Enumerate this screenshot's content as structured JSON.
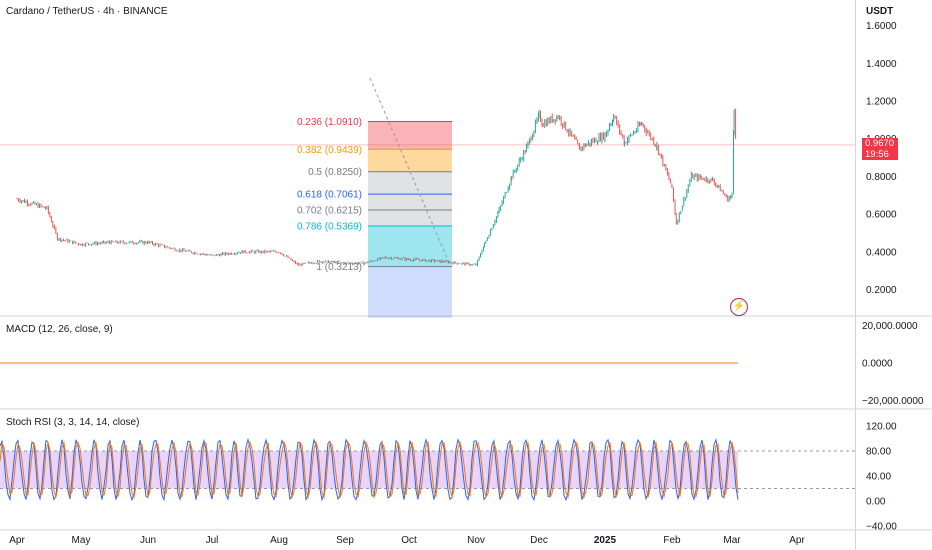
{
  "header": {
    "symbol_title": "Cardano / TetherUS · 4h · BINANCE",
    "currency": "USDT"
  },
  "current_price": {
    "value": "0.9670",
    "countdown": "19:56",
    "color": "#f23645"
  },
  "panes": {
    "macd_title": "MACD (12, 26, close, 9)",
    "stoch_title": "Stoch RSI (3, 3, 14, 14, close)"
  },
  "colors": {
    "up": "#26a69a",
    "down": "#ef5350",
    "macd_line": "#f57c00",
    "stoch_k": "#2962ff",
    "stoch_d": "#f57c00",
    "stoch_band": "#e1c4ff",
    "fib_236": "#f23645",
    "fib_382": "#ff9800",
    "fib_618": "#2962ff",
    "fib_786": "#00bcd4"
  },
  "icons": {
    "alert": "lightning-bolt-icon"
  },
  "chart_data": [
    {
      "type": "line",
      "title": "Cardano / TetherUS · 4h · BINANCE",
      "x_ticks": [
        "Apr",
        "May",
        "Jun",
        "Jul",
        "Aug",
        "Sep",
        "Oct",
        "Nov",
        "Dec",
        "2025",
        "Feb",
        "Mar",
        "Apr"
      ],
      "y_ticks": [
        "0.2000",
        "0.4000",
        "0.6000",
        "0.8000",
        "1.0000",
        "1.2000",
        "1.4000",
        "1.6000"
      ],
      "ylim": [
        0.1,
        1.67
      ],
      "series": [
        {
          "x": [
            "Apr 1",
            "Apr 15",
            "Apr 20",
            "May 1",
            "May 15",
            "Jun 1",
            "Jun 15",
            "Jul 1",
            "Jul 15",
            "Aug 1",
            "Aug 10",
            "Aug 20",
            "Sep 1",
            "Sep 10",
            "Sep 20",
            "Oct 1",
            "Oct 15",
            "Nov 1",
            "Nov 5",
            "Nov 12",
            "Nov 18",
            "Nov 25",
            "Dec 1",
            "Dec 3",
            "Dec 10",
            "Dec 20",
            "Jan 1",
            "Jan 5",
            "Jan 10",
            "Jan 18",
            "Jan 25",
            "Feb 1",
            "Feb 3",
            "Feb 10",
            "Feb 20",
            "Feb 27",
            "Mar 1",
            "Mar 2",
            "Mar 3"
          ],
          "values": [
            0.68,
            0.63,
            0.47,
            0.44,
            0.45,
            0.45,
            0.41,
            0.38,
            0.4,
            0.4,
            0.33,
            0.35,
            0.34,
            0.34,
            0.37,
            0.36,
            0.35,
            0.33,
            0.44,
            0.62,
            0.8,
            0.95,
            1.12,
            1.08,
            1.12,
            0.95,
            1.02,
            1.12,
            0.98,
            1.08,
            0.96,
            0.74,
            0.55,
            0.8,
            0.78,
            0.68,
            0.7,
            1.17,
            0.967
          ]
        }
      ],
      "fibonacci": {
        "levels": [
          {
            "label": "0.236 (1.0910)",
            "value": 1.091
          },
          {
            "label": "0.382 (0.9439)",
            "value": 0.9439
          },
          {
            "label": "0.5 (0.8250)",
            "value": 0.825
          },
          {
            "label": "0.618 (0.7061)",
            "value": 0.7061
          },
          {
            "label": "0.702 (0.6215)",
            "value": 0.6215
          },
          {
            "label": "0.786 (0.5369)",
            "value": 0.5369
          },
          {
            "label": "1 (0.3213)",
            "value": 0.3213
          }
        ],
        "bottom": 0.05
      }
    },
    {
      "type": "line",
      "title": "MACD (12, 26, close, 9)",
      "y_ticks": [
        "20,000.0000",
        "0.0000",
        "−20,000.0000"
      ],
      "ylim": [
        -20000,
        20000
      ],
      "series": [
        {
          "values": [
            0,
            0
          ]
        }
      ]
    },
    {
      "type": "line",
      "title": "Stoch RSI (3, 3, 14, 14, close)",
      "y_ticks": [
        "120.00",
        "80.00",
        "40.00",
        "0.00",
        "−40.00"
      ],
      "ylim": [
        -40,
        120
      ],
      "band": [
        20,
        80
      ]
    }
  ]
}
